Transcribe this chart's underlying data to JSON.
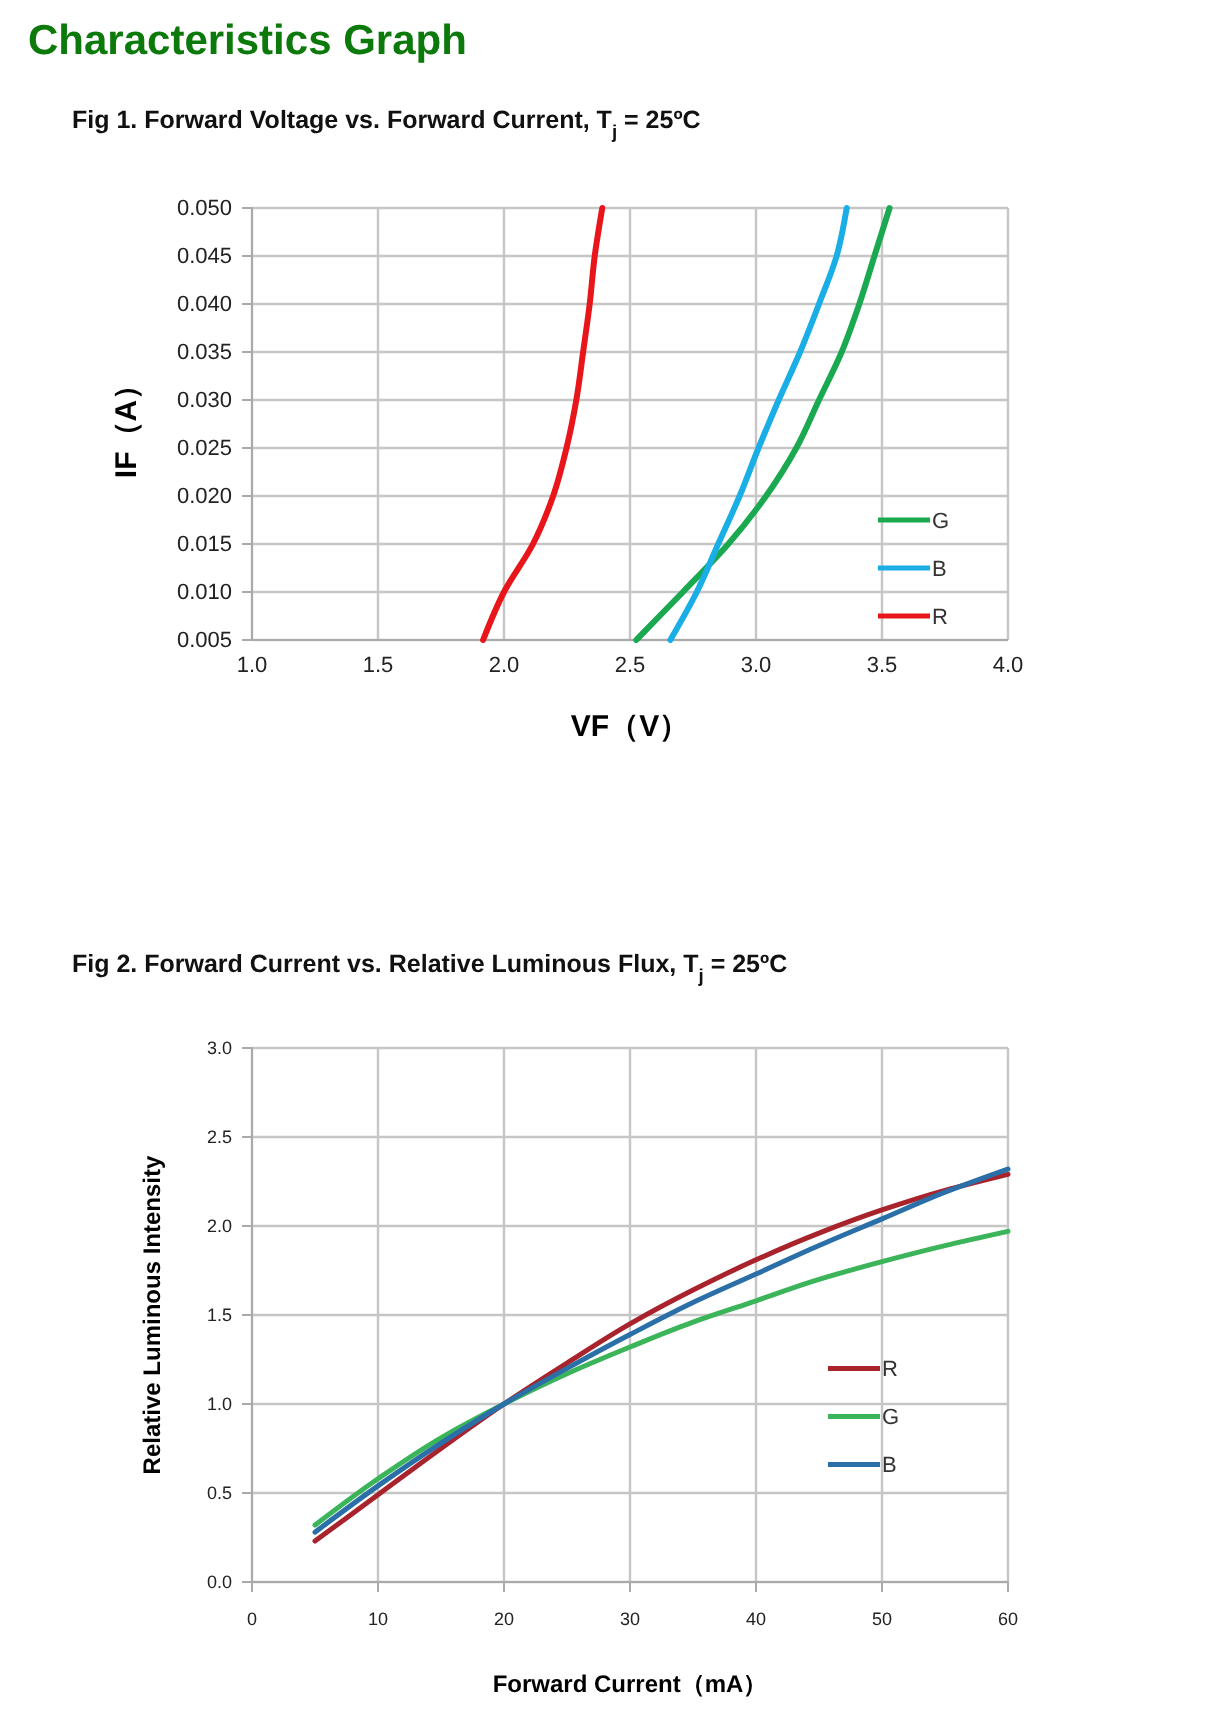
{
  "chart_data": [
    {
      "type": "line",
      "title": "Characteristics Graph",
      "subtitle": "Fig 1. Forward Voltage vs. Forward Current, T$_{j}$ = 25ºC",
      "xlabel": "VF（V）",
      "ylabel": "IF（A）",
      "xlim": [
        1.0,
        4.0
      ],
      "xticks": [
        {
          "value": 1.0,
          "label": "1.0"
        },
        {
          "value": 1.5,
          "label": "1.5"
        },
        {
          "value": 2.0,
          "label": "2.0"
        },
        {
          "value": 2.5,
          "label": "2.5"
        },
        {
          "value": 3.0,
          "label": "3.0"
        },
        {
          "value": 3.5,
          "label": "3.5"
        },
        {
          "value": 4.0,
          "label": "4.0"
        }
      ],
      "ylim": [
        0.005,
        0.05
      ],
      "yticks": [
        0.005,
        {
          "value": 0.01,
          "label": "0.010"
        },
        0.015,
        {
          "value": 0.02,
          "label": "0.020"
        },
        0.025,
        {
          "value": 0.03,
          "label": "0.030"
        },
        0.035,
        {
          "value": 0.04,
          "label": "0.040"
        },
        0.045,
        {
          "value": 0.05,
          "label": "0.050"
        }
      ],
      "grid": true,
      "legend": "bottom right",
      "marker": "none",
      "line_style": "solid",
      "series": [
        {
          "name": "G",
          "color": "#1aa950",
          "x": [
            2.525,
            2.71,
            2.89,
            3.04,
            3.16,
            3.25,
            3.34,
            3.41,
            3.47,
            3.53
          ],
          "values": [
            0.005,
            0.01,
            0.015,
            0.02,
            0.025,
            0.03,
            0.035,
            0.04,
            0.045,
            0.05
          ]
        },
        {
          "name": "B",
          "color": "#1aaee6",
          "x": [
            2.66,
            2.765,
            2.85,
            2.935,
            3.01,
            3.09,
            3.175,
            3.25,
            3.32,
            3.36
          ],
          "values": [
            0.005,
            0.01,
            0.015,
            0.02,
            0.025,
            0.03,
            0.035,
            0.04,
            0.045,
            0.05
          ]
        },
        {
          "name": "R",
          "color": "#e8161b",
          "x": [
            1.917,
            2.0,
            2.115,
            2.195,
            2.248,
            2.287,
            2.314,
            2.34,
            2.36,
            2.39
          ],
          "values": [
            0.005,
            0.01,
            0.015,
            0.02,
            0.025,
            0.03,
            0.035,
            0.04,
            0.045,
            0.05
          ]
        }
      ]
    },
    {
      "type": "line",
      "title": "Fig 2. Forward Current vs. Relative Luminous Flux, T$_{j}$ = 25ºC",
      "xlabel": "Forward  Current（mA）",
      "ylabel": "Relative Luminous Intensity",
      "xlim": [
        0,
        60
      ],
      "xticks": [
        0,
        10,
        20,
        30,
        40,
        50,
        60
      ],
      "ylim": [
        0,
        3.0
      ],
      "yticks": [
        {
          "value": 0,
          "label": "0.0"
        },
        0.5,
        {
          "value": 1,
          "label": "1.0"
        },
        1.5,
        {
          "value": 2,
          "label": "2.0"
        },
        2.5,
        {
          "value": 3,
          "label": "3.0"
        }
      ],
      "grid": true,
      "legend": "right",
      "marker": "none",
      "line_style": "solid",
      "series": [
        {
          "name": "R",
          "color": "#a8232b",
          "x": [
            5,
            10,
            15,
            20,
            25,
            30,
            35,
            40,
            45,
            50,
            55,
            60
          ],
          "values": [
            0.23,
            0.49,
            0.75,
            1.0,
            1.23,
            1.45,
            1.64,
            1.81,
            1.96,
            2.09,
            2.2,
            2.29
          ]
        },
        {
          "name": "G",
          "color": "#3cb55a",
          "x": [
            5,
            10,
            15,
            20,
            25,
            30,
            35,
            40,
            45,
            50,
            55,
            60
          ],
          "values": [
            0.32,
            0.58,
            0.81,
            1.0,
            1.17,
            1.32,
            1.46,
            1.58,
            1.7,
            1.8,
            1.89,
            1.97
          ]
        },
        {
          "name": "B",
          "color": "#2a6fa8",
          "x": [
            5,
            10,
            15,
            20,
            25,
            30,
            35,
            40,
            45,
            50,
            55,
            60
          ],
          "values": [
            0.28,
            0.54,
            0.78,
            1.0,
            1.2,
            1.39,
            1.57,
            1.73,
            1.89,
            2.04,
            2.19,
            2.32
          ]
        }
      ]
    }
  ]
}
